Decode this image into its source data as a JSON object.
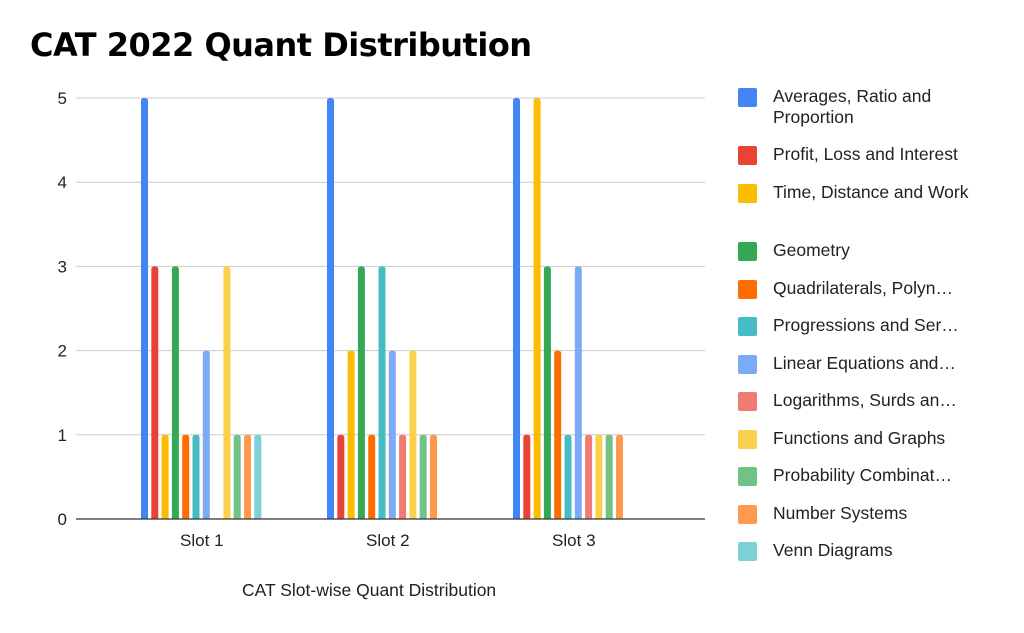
{
  "chart_data": {
    "type": "bar",
    "title": "CAT 2022 Quant Distribution",
    "xlabel": "CAT Slot-wise Quant Distribution",
    "ylabel": "",
    "categories": [
      "Slot 1",
      "Slot 2",
      "Slot 3"
    ],
    "ylim": [
      0,
      5
    ],
    "yticks": [
      0,
      1,
      2,
      3,
      4,
      5
    ],
    "grid": true,
    "legend_position": "right",
    "series": [
      {
        "name": "Averages, Ratio and Proportion",
        "legend_text": "Averages, Ratio and Proportion",
        "color": "#4285F4",
        "values": [
          5,
          5,
          5
        ]
      },
      {
        "name": "Profit, Loss and Interest",
        "legend_text": "Profit, Loss and Interest",
        "color": "#EA4335",
        "values": [
          3,
          1,
          1
        ]
      },
      {
        "name": "Time, Distance and Work",
        "legend_text": "Time, Distance and Work",
        "color": "#FBBC04",
        "values": [
          1,
          2,
          5
        ]
      },
      {
        "name": "Geometry",
        "legend_text": "Geometry",
        "color": "#34A853",
        "values": [
          3,
          3,
          3
        ]
      },
      {
        "name": "Quadrilaterals, Polyn…",
        "legend_text": "Quadrilaterals, Polyn…",
        "color": "#FF6D01",
        "values": [
          1,
          1,
          2
        ]
      },
      {
        "name": "Progressions and Ser…",
        "legend_text": "Progressions and Ser…",
        "color": "#46BDC6",
        "values": [
          1,
          3,
          1
        ]
      },
      {
        "name": "Linear Equations and…",
        "legend_text": "Linear Equations and…",
        "color": "#7BAAF7",
        "values": [
          2,
          2,
          3
        ]
      },
      {
        "name": "Logarithms, Surds an…",
        "legend_text": "Logarithms, Surds an…",
        "color": "#F07B72",
        "values": [
          0,
          1,
          1
        ]
      },
      {
        "name": "Functions and Graphs",
        "legend_text": "Functions and Graphs",
        "color": "#FCD04F",
        "values": [
          3,
          2,
          1
        ]
      },
      {
        "name": "Probability Combinat…",
        "legend_text": "Probability Combinat…",
        "color": "#71C287",
        "values": [
          1,
          1,
          1
        ]
      },
      {
        "name": "Number Systems",
        "legend_text": "Number Systems",
        "color": "#FF994D",
        "values": [
          1,
          1,
          1
        ]
      },
      {
        "name": "Venn Diagrams",
        "legend_text": "Venn Diagrams",
        "color": "#7ED1D7",
        "values": [
          1,
          0,
          0
        ]
      }
    ]
  }
}
